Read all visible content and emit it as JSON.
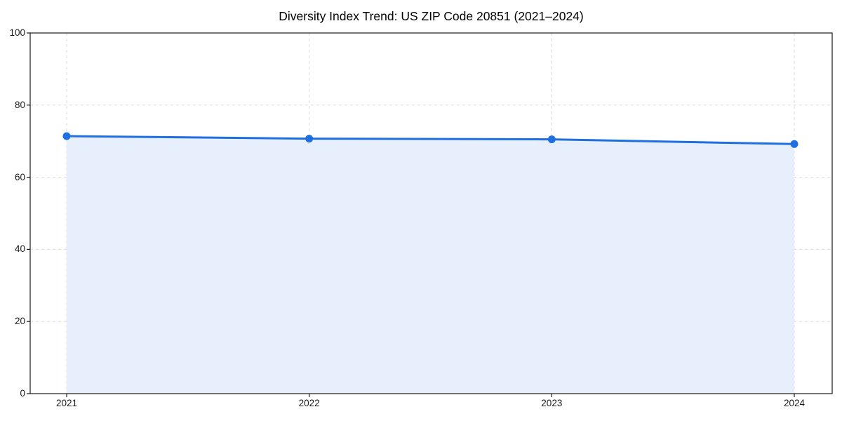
{
  "chart_data": {
    "type": "area",
    "title": "Diversity Index Trend: US ZIP Code 20851 (2021–2024)",
    "categories": [
      "2021",
      "2022",
      "2023",
      "2024"
    ],
    "x": [
      2021,
      2022,
      2023,
      2024
    ],
    "series": [
      {
        "name": "Diversity Index",
        "values": [
          71.4,
          70.7,
          70.5,
          69.2
        ]
      }
    ],
    "xlabel": "",
    "ylabel": "",
    "ylim": [
      0,
      100
    ],
    "yticks": [
      0,
      20,
      40,
      60,
      80,
      100
    ],
    "grid": true,
    "grid_style": "dashed",
    "legend": "none",
    "marker": "circle",
    "colors": {
      "line": "#1f6fe0",
      "fill": "#e7effc",
      "grid": "#d9d9d9",
      "spine": "#1a1a1a",
      "text": "#1a1a1a",
      "background": "#ffffff"
    }
  }
}
